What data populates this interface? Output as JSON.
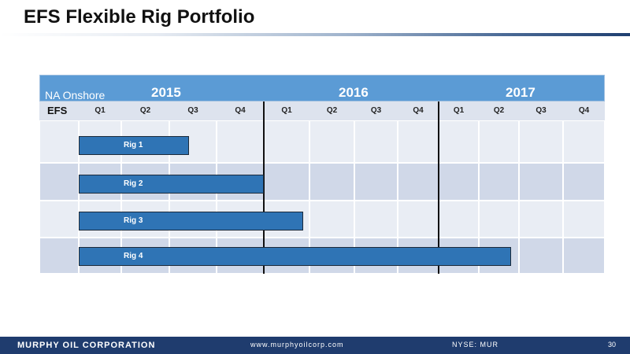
{
  "slide": {
    "title": "EFS Flexible Rig Portfolio"
  },
  "gantt": {
    "region": "NA Onshore",
    "row_header": "EFS",
    "years": [
      "2015",
      "2016",
      "2017"
    ],
    "quarters": [
      "Q1",
      "Q2",
      "Q3",
      "Q4",
      "Q1",
      "Q2",
      "Q3",
      "Q4",
      "Q1",
      "Q2",
      "Q3",
      "Q4"
    ],
    "rigs": [
      {
        "label": "Rig 1",
        "start_quarter": 1,
        "end_quarter": 3
      },
      {
        "label": "Rig 2",
        "start_quarter": 1,
        "end_quarter": 4
      },
      {
        "label": "Rig 3",
        "start_quarter": 1,
        "end_quarter": 5
      },
      {
        "label": "Rig 4",
        "start_quarter": 1,
        "end_quarter": 10
      }
    ],
    "colors": {
      "header": "#5b9bd5",
      "bar": "#2f74b5",
      "row_light": "#e9edf4",
      "row_dark": "#d0d8e8"
    }
  },
  "footer": {
    "company": "MURPHY OIL CORPORATION",
    "website": "www.murphyoilcorp.com",
    "ticker": "NYSE: MUR",
    "page": "30"
  }
}
